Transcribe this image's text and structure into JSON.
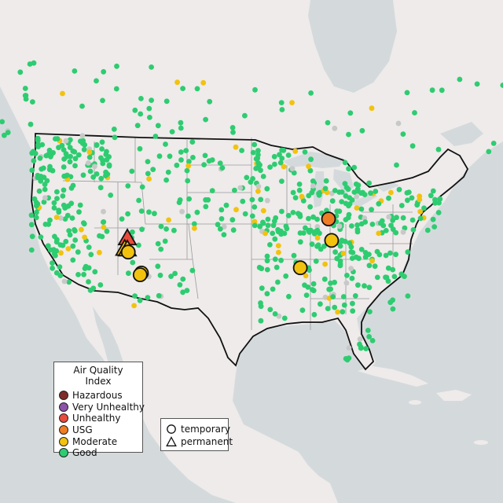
{
  "legend": {
    "title": "Air Quality Index",
    "categories": [
      {
        "label": "Hazardous",
        "color": "#7e2d2a"
      },
      {
        "label": "Very Unhealthy",
        "color": "#8e52a8"
      },
      {
        "label": "Unhealthy",
        "color": "#e94b3c"
      },
      {
        "label": "USG",
        "color": "#f07d23"
      },
      {
        "label": "Moderate",
        "color": "#f2c20f"
      },
      {
        "label": "Good",
        "color": "#2ecc71"
      }
    ]
  },
  "monitor_types": [
    {
      "label": "temporary",
      "shape": "circle-icon"
    },
    {
      "label": "permanent",
      "shape": "triangle-icon"
    }
  ],
  "colors": {
    "ocean": "#d4dadc",
    "land": "#eeebea",
    "highlight_land": "#f3f1ef",
    "state_border": "#9a9a9a",
    "national_border": "#111111",
    "no_data": "#c8c8c8"
  },
  "highlighted_monitors": [
    {
      "category": "Unhealthy",
      "type": "permanent",
      "lon": -121.6,
      "lat": 40.3
    },
    {
      "category": "Moderate",
      "type": "permanent",
      "lon": -122.2,
      "lat": 38.5
    },
    {
      "category": "Moderate",
      "type": "permanent",
      "lon": -121.6,
      "lat": 38.4
    },
    {
      "category": "Moderate",
      "type": "temporary",
      "lon": -121.4,
      "lat": 37.9
    },
    {
      "category": "Moderate",
      "type": "temporary",
      "lon": -118.4,
      "lat": 34.3
    },
    {
      "category": "Moderate",
      "type": "temporary",
      "lon": -118.7,
      "lat": 34.0
    },
    {
      "category": "Moderate",
      "type": "temporary",
      "lon": -82.3,
      "lat": 35.2
    },
    {
      "category": "Moderate",
      "type": "temporary",
      "lon": -75.2,
      "lat": 39.9
    },
    {
      "category": "USG",
      "type": "temporary",
      "lon": -75.9,
      "lat": 43.6
    }
  ]
}
